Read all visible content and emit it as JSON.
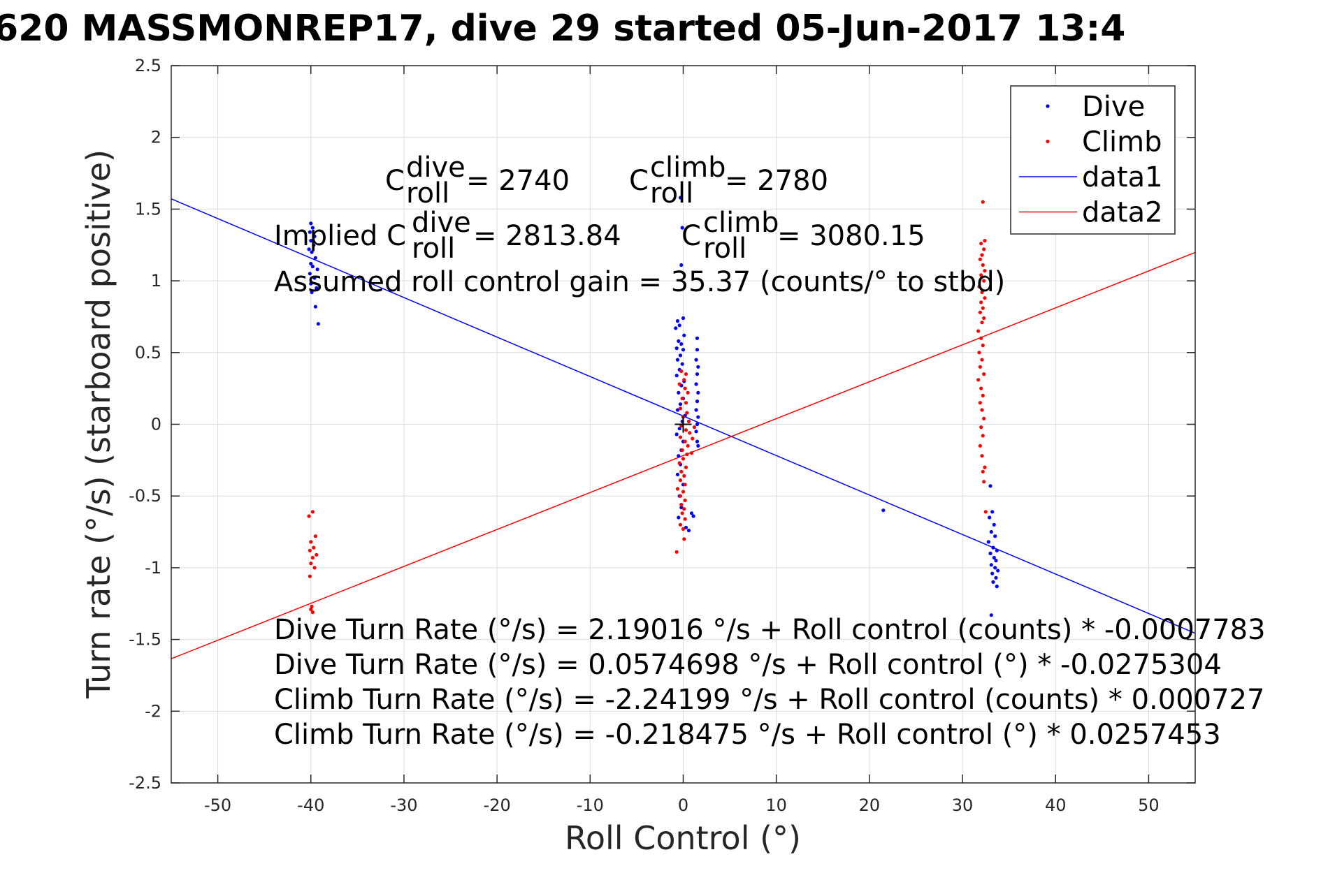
{
  "chart_data": {
    "type": "scatter",
    "title": "620 MASSMONREP17, dive 29 started 05-Jun-2017 13:4",
    "xlabel": "Roll Control (°)",
    "ylabel": "Turn rate (°/s) (starboard positive)",
    "xlim": [
      -55,
      55
    ],
    "ylim": [
      -2.5,
      2.5
    ],
    "xticks": [
      -50,
      -40,
      -30,
      -20,
      -10,
      0,
      10,
      20,
      30,
      40,
      50
    ],
    "yticks": [
      -2.5,
      -2,
      -1.5,
      -1,
      -0.5,
      0,
      0.5,
      1,
      1.5,
      2,
      2.5
    ],
    "xtick_labels": [
      "-50",
      "-40",
      "-30",
      "-20",
      "-10",
      "0",
      "10",
      "20",
      "30",
      "40",
      "50"
    ],
    "ytick_labels": [
      "-2.5",
      "-2",
      "-1.5",
      "-1",
      "-0.5",
      "0",
      "0.5",
      "1",
      "1.5",
      "2",
      "2.5"
    ],
    "grid": true,
    "legend_position": "top-right",
    "series": [
      {
        "name": "Dive",
        "kind": "points",
        "color": "#0000ff",
        "points": [
          [
            -40.0,
            1.4
          ],
          [
            -39.8,
            1.37
          ],
          [
            -40.1,
            1.34
          ],
          [
            -39.6,
            1.31
          ],
          [
            -40.0,
            1.28
          ],
          [
            -39.7,
            1.25
          ],
          [
            -40.2,
            1.22
          ],
          [
            -39.9,
            1.2
          ],
          [
            -39.5,
            1.16
          ],
          [
            -40.0,
            1.12
          ],
          [
            -39.8,
            1.1
          ],
          [
            -39.3,
            1.08
          ],
          [
            -40.1,
            1.05
          ],
          [
            -39.6,
            1.02
          ],
          [
            -40.0,
            0.98
          ],
          [
            -39.4,
            0.95
          ],
          [
            -39.9,
            0.92
          ],
          [
            -39.5,
            0.82
          ],
          [
            -39.2,
            0.7
          ],
          [
            -0.3,
            1.58
          ],
          [
            -0.1,
            1.37
          ],
          [
            -0.2,
            1.11
          ],
          [
            0.0,
            0.74
          ],
          [
            -0.6,
            0.72
          ],
          [
            -0.4,
            0.69
          ],
          [
            -0.8,
            0.67
          ],
          [
            0.1,
            0.62
          ],
          [
            -0.5,
            0.58
          ],
          [
            -0.2,
            0.56
          ],
          [
            -0.7,
            0.53
          ],
          [
            0.0,
            0.52
          ],
          [
            -0.3,
            0.48
          ],
          [
            -0.6,
            0.45
          ],
          [
            -0.1,
            0.42
          ],
          [
            -0.4,
            0.38
          ],
          [
            -0.7,
            0.34
          ],
          [
            0.1,
            0.3
          ],
          [
            -0.2,
            0.27
          ],
          [
            -0.5,
            0.22
          ],
          [
            0.0,
            0.18
          ],
          [
            -0.3,
            0.14
          ],
          [
            -0.6,
            0.1
          ],
          [
            0.2,
            0.06
          ],
          [
            -0.1,
            0.02
          ],
          [
            -0.4,
            -0.03
          ],
          [
            -0.7,
            -0.07
          ],
          [
            0.0,
            -0.12
          ],
          [
            -0.2,
            -0.18
          ],
          [
            -0.5,
            -0.22
          ],
          [
            -0.3,
            -0.28
          ],
          [
            -0.6,
            -0.35
          ],
          [
            0.0,
            -0.42
          ],
          [
            -0.4,
            -0.5
          ],
          [
            -0.2,
            -0.58
          ],
          [
            -0.5,
            -0.65
          ],
          [
            0.3,
            -0.72
          ],
          [
            0.6,
            -0.74
          ],
          [
            1.5,
            0.6
          ],
          [
            1.5,
            0.52
          ],
          [
            1.4,
            0.45
          ],
          [
            1.6,
            0.4
          ],
          [
            1.5,
            0.35
          ],
          [
            1.4,
            0.28
          ],
          [
            1.6,
            0.22
          ],
          [
            1.5,
            0.16
          ],
          [
            1.4,
            0.1
          ],
          [
            1.6,
            0.05
          ],
          [
            1.5,
            0.0
          ],
          [
            1.4,
            -0.05
          ],
          [
            1.5,
            -0.12
          ],
          [
            1.6,
            -0.15
          ],
          [
            0.9,
            -0.62
          ],
          [
            1.1,
            -0.64
          ],
          [
            21.5,
            -0.6
          ],
          [
            33.0,
            -0.43
          ],
          [
            33.2,
            -0.61
          ],
          [
            32.9,
            -0.65
          ],
          [
            33.4,
            -0.7
          ],
          [
            33.1,
            -0.75
          ],
          [
            33.5,
            -0.78
          ],
          [
            32.8,
            -0.82
          ],
          [
            33.3,
            -0.86
          ],
          [
            33.7,
            -0.88
          ],
          [
            33.0,
            -0.9
          ],
          [
            33.4,
            -0.93
          ],
          [
            33.6,
            -0.95
          ],
          [
            33.1,
            -0.98
          ],
          [
            33.5,
            -1.0
          ],
          [
            33.8,
            -1.02
          ],
          [
            33.2,
            -1.04
          ],
          [
            33.6,
            -1.07
          ],
          [
            33.3,
            -1.1
          ],
          [
            33.7,
            -1.13
          ],
          [
            33.1,
            -1.33
          ]
        ]
      },
      {
        "name": "Climb",
        "kind": "points",
        "color": "#ff0000",
        "points": [
          [
            -39.8,
            -0.61
          ],
          [
            -40.2,
            -0.64
          ],
          [
            -39.5,
            -0.78
          ],
          [
            -40.0,
            -0.82
          ],
          [
            -39.7,
            -0.86
          ],
          [
            -40.1,
            -0.88
          ],
          [
            -39.4,
            -0.91
          ],
          [
            -39.8,
            -0.93
          ],
          [
            -40.0,
            -0.97
          ],
          [
            -39.6,
            -1.0
          ],
          [
            -40.1,
            -1.06
          ],
          [
            -39.9,
            -1.27
          ],
          [
            -40.0,
            -1.29
          ],
          [
            -39.8,
            -1.31
          ],
          [
            -0.2,
            0.37
          ],
          [
            0.3,
            0.35
          ],
          [
            0.1,
            0.31
          ],
          [
            -0.4,
            0.28
          ],
          [
            0.2,
            0.25
          ],
          [
            0.5,
            0.22
          ],
          [
            -0.1,
            0.18
          ],
          [
            0.3,
            0.15
          ],
          [
            -0.3,
            0.11
          ],
          [
            0.4,
            0.08
          ],
          [
            0.0,
            0.05
          ],
          [
            0.6,
            0.02
          ],
          [
            -0.2,
            -0.01
          ],
          [
            0.3,
            -0.04
          ],
          [
            0.7,
            -0.06
          ],
          [
            -0.3,
            -0.09
          ],
          [
            0.2,
            -0.12
          ],
          [
            0.5,
            -0.15
          ],
          [
            -0.1,
            -0.18
          ],
          [
            0.4,
            -0.21
          ],
          [
            0.0,
            -0.24
          ],
          [
            -0.4,
            -0.27
          ],
          [
            0.3,
            -0.3
          ],
          [
            -0.2,
            -0.33
          ],
          [
            0.1,
            -0.36
          ],
          [
            -0.3,
            -0.39
          ],
          [
            0.2,
            -0.42
          ],
          [
            -0.6,
            -0.45
          ],
          [
            0.0,
            -0.47
          ],
          [
            -0.3,
            -0.5
          ],
          [
            0.2,
            -0.53
          ],
          [
            -0.2,
            -0.56
          ],
          [
            0.1,
            -0.59
          ],
          [
            -0.1,
            -0.62
          ],
          [
            0.2,
            -0.66
          ],
          [
            -0.3,
            -0.7
          ],
          [
            0.0,
            -0.73
          ],
          [
            0.1,
            -0.8
          ],
          [
            -0.7,
            -0.89
          ],
          [
            1.2,
            -0.02
          ],
          [
            1.0,
            -0.1
          ],
          [
            0.9,
            -0.2
          ],
          [
            32.2,
            1.55
          ],
          [
            32.4,
            1.28
          ],
          [
            32.0,
            1.26
          ],
          [
            32.3,
            1.22
          ],
          [
            32.1,
            1.18
          ],
          [
            31.9,
            1.15
          ],
          [
            32.2,
            1.11
          ],
          [
            32.4,
            1.07
          ],
          [
            32.0,
            1.04
          ],
          [
            32.3,
            1.0
          ],
          [
            31.8,
            0.96
          ],
          [
            32.1,
            0.92
          ],
          [
            32.4,
            0.88
          ],
          [
            32.0,
            0.85
          ],
          [
            32.2,
            0.81
          ],
          [
            31.9,
            0.78
          ],
          [
            32.3,
            0.74
          ],
          [
            32.1,
            0.71
          ],
          [
            31.7,
            0.65
          ],
          [
            32.0,
            0.6
          ],
          [
            32.2,
            0.55
          ],
          [
            31.8,
            0.5
          ],
          [
            32.1,
            0.45
          ],
          [
            31.9,
            0.4
          ],
          [
            32.3,
            0.35
          ],
          [
            31.7,
            0.31
          ],
          [
            32.0,
            0.25
          ],
          [
            32.2,
            0.2
          ],
          [
            31.9,
            0.15
          ],
          [
            32.1,
            0.1
          ],
          [
            32.3,
            0.04
          ],
          [
            32.0,
            -0.02
          ],
          [
            32.2,
            -0.08
          ],
          [
            31.9,
            -0.15
          ],
          [
            32.1,
            -0.22
          ],
          [
            32.4,
            -0.3
          ],
          [
            32.2,
            -0.33
          ],
          [
            32.3,
            -0.4
          ],
          [
            32.5,
            -0.61
          ]
        ]
      },
      {
        "name": "data1",
        "kind": "line",
        "color": "#0000ff",
        "points": [
          [
            -55,
            1.5716
          ],
          [
            55,
            -1.4568
          ]
        ]
      },
      {
        "name": "data2",
        "kind": "line",
        "color": "#ff0000",
        "points": [
          [
            -55,
            -1.6345
          ],
          [
            55,
            1.1975
          ]
        ]
      }
    ],
    "center_marker": {
      "x": 0,
      "y": 0,
      "symbol": "+"
    },
    "annotations": {
      "c_dive_base": "C",
      "c_dive_sup": "dive",
      "c_dive_sub": "roll",
      "c_dive_val": "= 2740",
      "c_climb_base": "C",
      "c_climb_sup": "climb",
      "c_climb_sub": "roll",
      "c_climb_val": "= 2780",
      "implied_prefix": "Implied C",
      "implied_dive_sup": "dive",
      "implied_dive_sub": "roll",
      "implied_dive_val": "= 2813.84",
      "implied_climb_base": "C",
      "implied_climb_sup": "climb",
      "implied_climb_sub": "roll",
      "implied_climb_val": "= 3080.15",
      "gain_line": "Assumed roll control gain = 35.37 (counts/° to stbd)",
      "fit_lines": [
        "Dive Turn Rate (°/s) = 2.19016 °/s + Roll control (counts) * -0.0007783",
        "Dive Turn Rate (°/s) = 0.0574698 °/s + Roll control (°) * -0.0275304",
        "Climb Turn Rate (°/s) = -2.24199 °/s + Roll control (counts) * 0.000727",
        "Climb Turn Rate (°/s) = -0.218475 °/s + Roll control (°) * 0.0257453"
      ]
    }
  }
}
